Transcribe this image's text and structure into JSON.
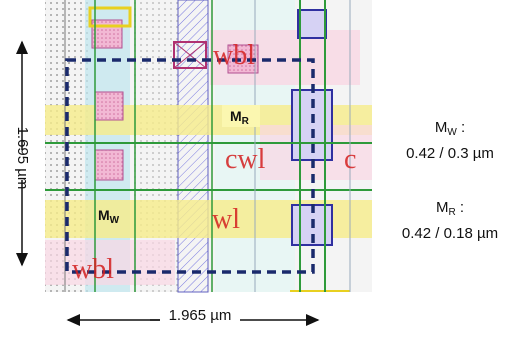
{
  "dimensions": {
    "height": "1.695 µm",
    "width": "1.965 µm"
  },
  "layout_labels": {
    "mr": {
      "main": "M",
      "sub": "R"
    },
    "mw": {
      "main": "M",
      "sub": "W"
    }
  },
  "wires": [
    "wbl",
    "cwl",
    "c",
    "wl",
    "wbl"
  ],
  "legend": [
    {
      "name": {
        "main": "M",
        "sub": "W"
      },
      "suffix": " :",
      "size": "0.42 / 0.3 µm"
    },
    {
      "name": {
        "main": "M",
        "sub": "R"
      },
      "suffix": " :",
      "size": "0.42 / 0.18 µm"
    }
  ]
}
